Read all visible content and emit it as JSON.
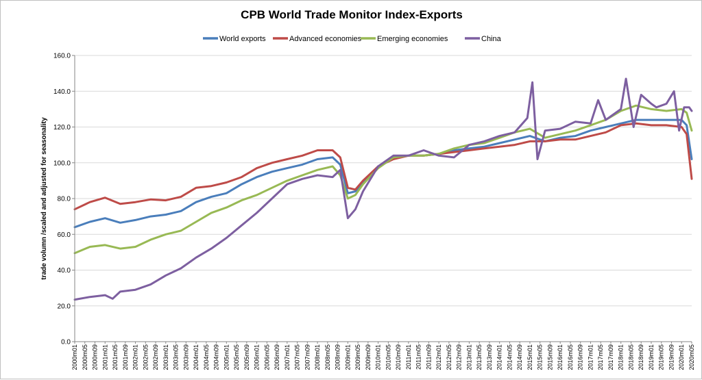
{
  "chart_data": {
    "type": "line",
    "title": "CPB World Trade Monitor Index-Exports",
    "ylabel": "trade volumn /scaled and adjusted for seasonality",
    "xlabel": "",
    "ylim": [
      0,
      160
    ],
    "y_ticks": [
      "0.0",
      "20.0",
      "40.0",
      "60.0",
      "80.0",
      "100.0",
      "120.0",
      "140.0",
      "160.0"
    ],
    "grid": "horizontal",
    "legend_position": "top",
    "x_ticks": [
      "2000m01",
      "2000m05",
      "2000m09",
      "2001m01",
      "2001m05",
      "2001m09",
      "2002m01",
      "2002m05",
      "2002m09",
      "2003m01",
      "2003m05",
      "2003m09",
      "2004m01",
      "2004m05",
      "2004m09",
      "2005m01",
      "2005m05",
      "2005m09",
      "2006m01",
      "2006m05",
      "2006m09",
      "2007m01",
      "2007m05",
      "2007m09",
      "2008m01",
      "2008m05",
      "2008m09",
      "2009m01",
      "2009m05",
      "2009m09",
      "2010m01",
      "2010m05",
      "2010m09",
      "2011m01",
      "2011m05",
      "2011m09",
      "2012m01",
      "2012m05",
      "2012m09",
      "2013m01",
      "2013m05",
      "2013m09",
      "2014m01",
      "2014m05",
      "2014m09",
      "2015m01",
      "2015m05",
      "2015m09",
      "2016m01",
      "2016m05",
      "2016m09",
      "2017m01",
      "2017m05",
      "2017m09",
      "2018m01",
      "2018m05",
      "2018m09",
      "2019m01",
      "2019m05",
      "2019m09",
      "2020m01",
      "2020m05"
    ],
    "x_range": [
      "2000m01",
      "2020m05"
    ],
    "series": [
      {
        "name": "World exports",
        "color": "#4a7ebb",
        "x": [
          "2000m01",
          "2000m07",
          "2001m01",
          "2001m07",
          "2002m01",
          "2002m07",
          "2003m01",
          "2003m07",
          "2004m01",
          "2004m07",
          "2005m01",
          "2005m07",
          "2006m01",
          "2006m07",
          "2007m01",
          "2007m07",
          "2008m01",
          "2008m07",
          "2008m10",
          "2009m01",
          "2009m04",
          "2009m07",
          "2010m01",
          "2010m07",
          "2011m01",
          "2011m07",
          "2012m01",
          "2012m07",
          "2013m01",
          "2013m07",
          "2014m01",
          "2014m07",
          "2015m01",
          "2015m07",
          "2016m01",
          "2016m07",
          "2017m01",
          "2017m07",
          "2018m01",
          "2018m07",
          "2019m01",
          "2019m07",
          "2020m01",
          "2020m03",
          "2020m05"
        ],
        "values": [
          64,
          67,
          69,
          66.5,
          68,
          70,
          71,
          73,
          78,
          81,
          83,
          88,
          92,
          95,
          97,
          99,
          102,
          103,
          99,
          83,
          84,
          89,
          98,
          103,
          104,
          104,
          105,
          107,
          108,
          109,
          111,
          113,
          115,
          112,
          114,
          115,
          118,
          120,
          122,
          124,
          124,
          124,
          124,
          121,
          102
        ]
      },
      {
        "name": "Advanced economies",
        "color": "#be4b48",
        "x": [
          "2000m01",
          "2000m07",
          "2001m01",
          "2001m07",
          "2002m01",
          "2002m07",
          "2003m01",
          "2003m07",
          "2004m01",
          "2004m07",
          "2005m01",
          "2005m07",
          "2006m01",
          "2006m07",
          "2007m01",
          "2007m07",
          "2008m01",
          "2008m07",
          "2008m10",
          "2009m01",
          "2009m04",
          "2009m07",
          "2010m01",
          "2010m07",
          "2011m01",
          "2011m07",
          "2012m01",
          "2012m07",
          "2013m01",
          "2013m07",
          "2014m01",
          "2014m07",
          "2015m01",
          "2015m07",
          "2016m01",
          "2016m07",
          "2017m01",
          "2017m07",
          "2018m01",
          "2018m07",
          "2019m01",
          "2019m07",
          "2020m01",
          "2020m03",
          "2020m05"
        ],
        "values": [
          74,
          78,
          80.5,
          77,
          78,
          79.5,
          79,
          81,
          86,
          87,
          89,
          92,
          97,
          100,
          102,
          104,
          107,
          107,
          103,
          86,
          85,
          90,
          98,
          102,
          104,
          104,
          105,
          106,
          107,
          108,
          109,
          110,
          112,
          112,
          113,
          113,
          115,
          117,
          121,
          122,
          121,
          121,
          120,
          116,
          91
        ]
      },
      {
        "name": "Emerging economies",
        "color": "#98b954",
        "x": [
          "2000m01",
          "2000m07",
          "2001m01",
          "2001m07",
          "2002m01",
          "2002m07",
          "2003m01",
          "2003m07",
          "2004m01",
          "2004m07",
          "2005m01",
          "2005m07",
          "2006m01",
          "2006m07",
          "2007m01",
          "2007m07",
          "2008m01",
          "2008m07",
          "2008m10",
          "2009m01",
          "2009m04",
          "2009m07",
          "2010m01",
          "2010m07",
          "2011m01",
          "2011m07",
          "2012m01",
          "2012m07",
          "2013m01",
          "2013m07",
          "2014m01",
          "2014m07",
          "2015m01",
          "2015m07",
          "2016m01",
          "2016m07",
          "2017m01",
          "2017m07",
          "2018m01",
          "2018m07",
          "2019m01",
          "2019m07",
          "2020m01",
          "2020m03",
          "2020m05"
        ],
        "values": [
          49.5,
          53,
          54,
          52,
          53,
          57,
          60,
          62,
          67,
          72,
          75,
          79,
          82,
          86,
          90,
          93,
          96,
          98,
          93,
          80,
          82,
          88,
          97,
          103,
          104,
          104,
          105,
          108,
          110,
          111,
          114,
          117,
          119,
          114,
          116,
          118,
          121,
          124,
          129,
          132,
          130,
          129,
          130,
          128,
          118
        ]
      },
      {
        "name": "China",
        "color": "#7d5fa0",
        "x": [
          "2000m01",
          "2000m07",
          "2001m01",
          "2001m04",
          "2001m07",
          "2002m01",
          "2002m07",
          "2003m01",
          "2003m07",
          "2004m01",
          "2004m07",
          "2005m01",
          "2005m07",
          "2006m01",
          "2006m07",
          "2007m01",
          "2007m07",
          "2008m01",
          "2008m07",
          "2008m10",
          "2009m01",
          "2009m04",
          "2009m07",
          "2010m01",
          "2010m07",
          "2011m01",
          "2011m07",
          "2012m01",
          "2012m07",
          "2013m01",
          "2013m07",
          "2014m01",
          "2014m07",
          "2014m12",
          "2015m02",
          "2015m04",
          "2015m07",
          "2016m01",
          "2016m07",
          "2017m01",
          "2017m04",
          "2017m07",
          "2018m01",
          "2018m03",
          "2018m06",
          "2018m09",
          "2019m01",
          "2019m03",
          "2019m07",
          "2019m10",
          "2019m12",
          "2020m02",
          "2020m04",
          "2020m05"
        ],
        "values": [
          23.5,
          25,
          26,
          24,
          28,
          29,
          32,
          37,
          41,
          47,
          52,
          58,
          65,
          72,
          80,
          88,
          91,
          93,
          92,
          96,
          69,
          74,
          84,
          98,
          104,
          104,
          107,
          104,
          103,
          110,
          112,
          115,
          117,
          125,
          145,
          102,
          118,
          119,
          123,
          122,
          135,
          124,
          130,
          147,
          120,
          138,
          133,
          131,
          133,
          140,
          118,
          131,
          131,
          129
        ]
      }
    ]
  }
}
